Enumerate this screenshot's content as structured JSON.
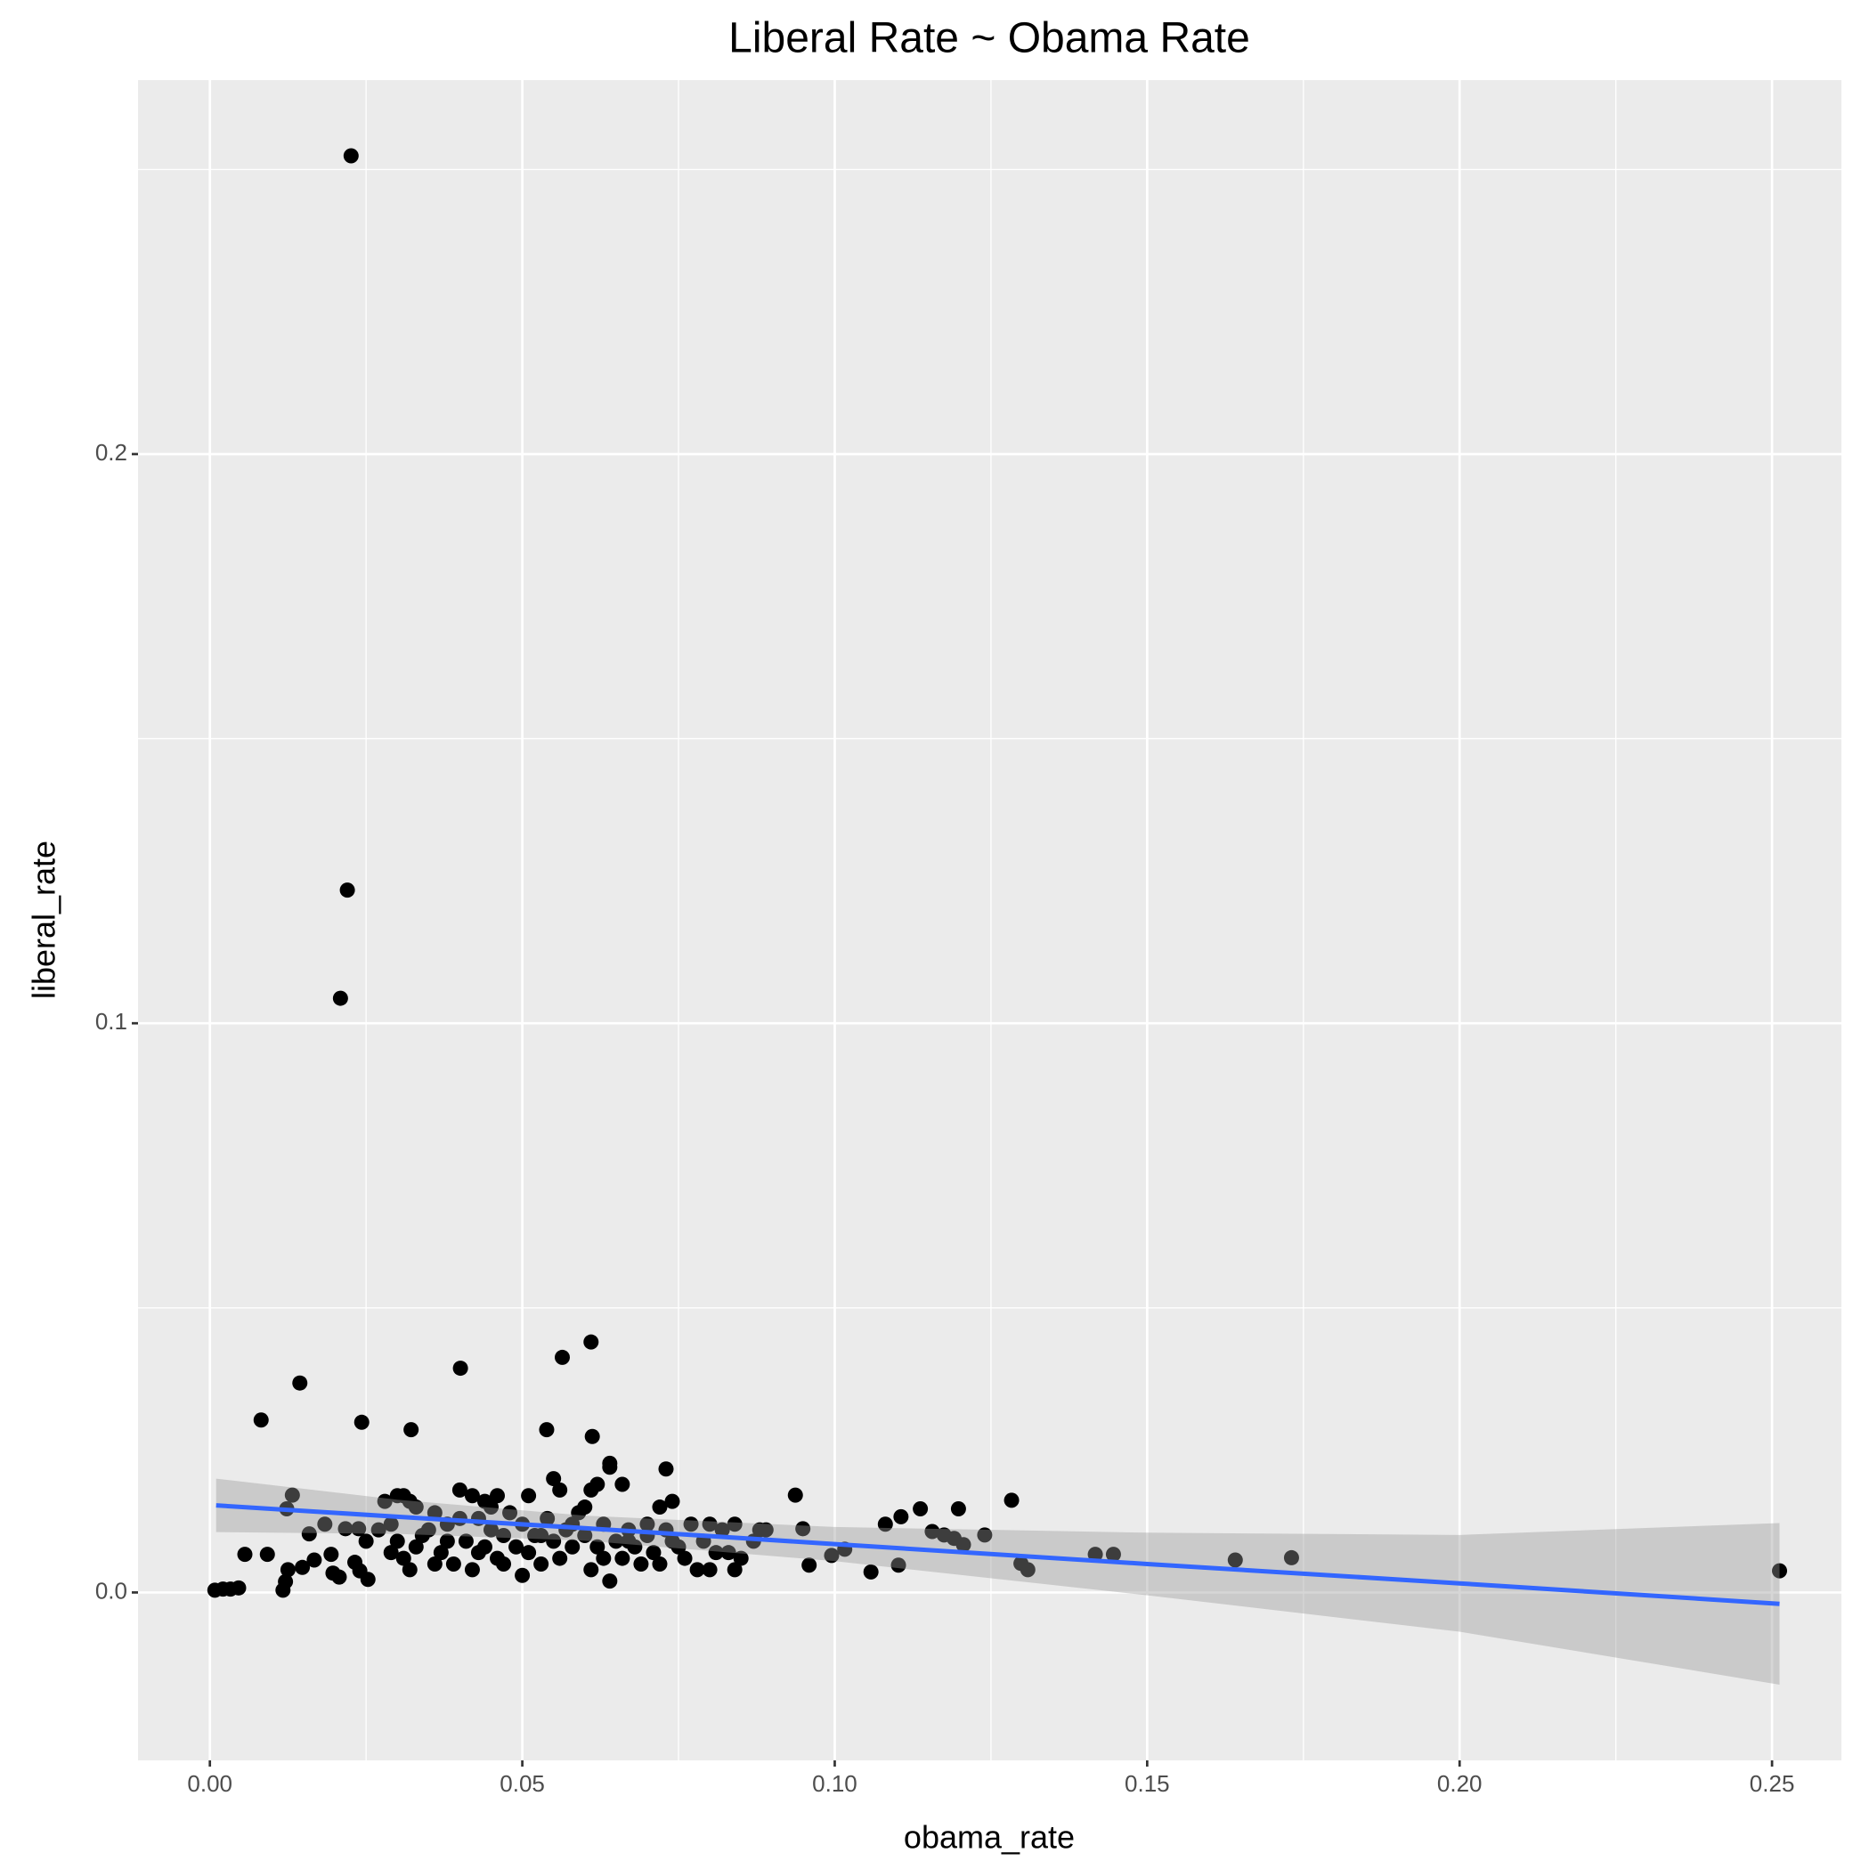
{
  "chart_data": {
    "type": "scatter",
    "title": "Liberal Rate ~ Obama Rate",
    "x_label": "obama_rate",
    "y_label": "liberal_rate",
    "color": "#000000",
    "x": [
      0.0226,
      0.022,
      0.0209,
      0.061,
      0.0564,
      0.0401,
      0.0144,
      0.0082,
      0.0243,
      0.0322,
      0.0539,
      0.0612,
      0.073,
      0.064,
      0.0937,
      0.1283,
      0.2512,
      0.1731,
      0.1641,
      0.1446,
      0.1417,
      0.1309,
      0.1298,
      0.124,
      0.1198,
      0.1137,
      0.1106,
      0.1081,
      0.1102,
      0.1058,
      0.1175,
      0.1191,
      0.1206,
      0.1156,
      0.1016,
      0.0995,
      0.0959,
      0.0949,
      0.0008,
      0.0021,
      0.0033,
      0.0046,
      0.0056,
      0.0092,
      0.0117,
      0.0121,
      0.0125,
      0.0148,
      0.0167,
      0.0194,
      0.0197,
      0.0207,
      0.0232,
      0.024,
      0.0253,
      0.0159,
      0.0184,
      0.0217,
      0.0238,
      0.0123,
      0.0132,
      0.028,
      0.03,
      0.031,
      0.032,
      0.029,
      0.03,
      0.031,
      0.032,
      0.033,
      0.034,
      0.035,
      0.036,
      0.037,
      0.038,
      0.039,
      0.04,
      0.041,
      0.042,
      0.042,
      0.043,
      0.044,
      0.044,
      0.045,
      0.046,
      0.046,
      0.047,
      0.048,
      0.049,
      0.05,
      0.05,
      0.051,
      0.051,
      0.052,
      0.053,
      0.054,
      0.055,
      0.055,
      0.056,
      0.056,
      0.057,
      0.058,
      0.059,
      0.06,
      0.06,
      0.061,
      0.061,
      0.062,
      0.062,
      0.063,
      0.064,
      0.064,
      0.065,
      0.066,
      0.066,
      0.067,
      0.068,
      0.069,
      0.07,
      0.071,
      0.072,
      0.072,
      0.073,
      0.074,
      0.075,
      0.076,
      0.077,
      0.078,
      0.079,
      0.08,
      0.08,
      0.081,
      0.082,
      0.083,
      0.084,
      0.084,
      0.085,
      0.087,
      0.088,
      0.089,
      0.036,
      0.038,
      0.04,
      0.043,
      0.047,
      0.053,
      0.058,
      0.063,
      0.067,
      0.07,
      0.074,
      0.029,
      0.027,
      0.025,
      0.033,
      0.045
    ],
    "values": [
      0.2524,
      0.1234,
      0.1044,
      0.044,
      0.0413,
      0.0394,
      0.0368,
      0.0303,
      0.0299,
      0.0286,
      0.0286,
      0.0274,
      0.0217,
      0.0227,
      0.0171,
      0.0162,
      0.0038,
      0.0061,
      0.0057,
      0.0067,
      0.0067,
      0.004,
      0.0051,
      0.0101,
      0.0147,
      0.0147,
      0.0133,
      0.012,
      0.0048,
      0.0036,
      0.0101,
      0.0095,
      0.0084,
      0.0107,
      0.0076,
      0.0065,
      0.0048,
      0.0112,
      0.0004,
      0.0006,
      0.0006,
      0.0008,
      0.0067,
      0.0067,
      0.0004,
      0.0019,
      0.004,
      0.0044,
      0.0057,
      0.0067,
      0.0034,
      0.0027,
      0.0053,
      0.0038,
      0.0023,
      0.0103,
      0.012,
      0.0112,
      0.0112,
      0.0147,
      0.0171,
      0.016,
      0.017,
      0.017,
      0.016,
      0.012,
      0.009,
      0.006,
      0.004,
      0.008,
      0.01,
      0.011,
      0.014,
      0.007,
      0.012,
      0.005,
      0.018,
      0.009,
      0.017,
      0.004,
      0.013,
      0.016,
      0.008,
      0.011,
      0.006,
      0.017,
      0.01,
      0.014,
      0.008,
      0.003,
      0.012,
      0.017,
      0.007,
      0.01,
      0.005,
      0.013,
      0.009,
      0.02,
      0.018,
      0.006,
      0.011,
      0.008,
      0.014,
      0.01,
      0.015,
      0.004,
      0.018,
      0.019,
      0.008,
      0.012,
      0.002,
      0.022,
      0.009,
      0.006,
      0.019,
      0.011,
      0.008,
      0.005,
      0.01,
      0.007,
      0.005,
      0.015,
      0.011,
      0.016,
      0.008,
      0.006,
      0.012,
      0.004,
      0.009,
      0.012,
      0.004,
      0.007,
      0.011,
      0.007,
      0.012,
      0.004,
      0.006,
      0.009,
      0.011,
      0.011,
      0.005,
      0.009,
      0.013,
      0.007,
      0.005,
      0.01,
      0.012,
      0.006,
      0.009,
      0.012,
      0.009,
      0.007,
      0.011,
      0.009,
      0.015,
      0.015
    ],
    "smooth": {
      "color": "#3366FF",
      "band_color": "#999999",
      "x": [
        0.001,
        0.03,
        0.06,
        0.1,
        0.15,
        0.2,
        0.2512
      ],
      "values": [
        0.0153,
        0.0133,
        0.0113,
        0.0085,
        0.005,
        0.0016,
        -0.002
      ],
      "lower": [
        0.0106,
        0.0103,
        0.0091,
        0.0055,
        -0.0005,
        -0.0069,
        -0.0162
      ],
      "upper": [
        0.02,
        0.0163,
        0.0135,
        0.0115,
        0.0105,
        0.0101,
        0.0122
      ]
    },
    "xlim": [
      -0.0115,
      0.2611
    ],
    "ylim": [
      -0.0295,
      0.2657
    ],
    "xticks": [
      {
        "value": 0,
        "label": "0.00"
      },
      {
        "value": 0.05,
        "label": "0.05"
      },
      {
        "value": 0.1,
        "label": "0.10"
      },
      {
        "value": 0.15,
        "label": "0.15"
      },
      {
        "value": 0.2,
        "label": "0.20"
      },
      {
        "value": 0.25,
        "label": "0.25"
      }
    ],
    "yticks": [
      {
        "value": 0,
        "label": "0.0"
      },
      0.1,
      0.2
    ],
    "x_minor_grid": [
      0.025,
      0.075,
      0.125,
      0.175,
      0.225
    ],
    "y_minor_grid": [
      0.05,
      0.15,
      0.25
    ],
    "grid": true
  }
}
